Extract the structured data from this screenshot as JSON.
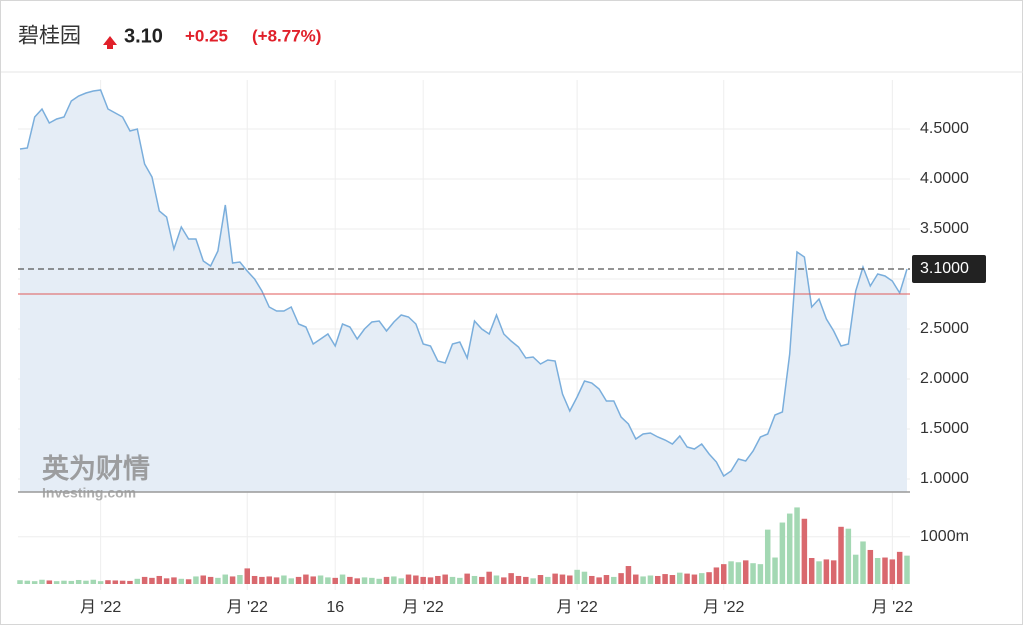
{
  "header": {
    "name": "碧桂园",
    "price": "3.10",
    "change": "+0.25",
    "change_pct": "(+8.77%)"
  },
  "watermark": {
    "brand": "英为财情",
    "site": "Investing.com"
  },
  "chart_data": [
    {
      "type": "line",
      "line_color": "#7aaedc",
      "area_color": "#e5edf6",
      "grid": true,
      "xlim": [
        0,
        121
      ],
      "xticks": [
        {
          "value": 11,
          "label": "月 '22"
        },
        {
          "value": 31,
          "label": "月 '22"
        },
        {
          "value": 43,
          "label": "16"
        },
        {
          "value": 55,
          "label": "月 '22"
        },
        {
          "value": 76,
          "label": "月 '22"
        },
        {
          "value": 96,
          "label": "月 '22"
        },
        {
          "value": 119,
          "label": "月 '22"
        }
      ],
      "ylim": [
        0.87,
        4.99
      ],
      "yticks": [
        {
          "value": 1,
          "label": "1.0000"
        },
        {
          "value": 1.5,
          "label": "1.5000"
        },
        {
          "value": 2,
          "label": "2.0000"
        },
        {
          "value": 2.5,
          "label": "2.5000"
        },
        {
          "value": 3,
          "label": "3.0000"
        },
        {
          "value": 3.5,
          "label": "3.5000"
        },
        {
          "value": 4,
          "label": "4.0000"
        },
        {
          "value": 4.5,
          "label": "4.5000"
        }
      ],
      "last_price": {
        "value": 3.1,
        "label": "3.1000"
      },
      "prev_close": 2.85,
      "series": [
        {
          "values": [
            4.3,
            4.31,
            4.62,
            4.7,
            4.56,
            4.6,
            4.62,
            4.78,
            4.83,
            4.86,
            4.88,
            4.89,
            4.7,
            4.66,
            4.62,
            4.48,
            4.5,
            4.15,
            4.02,
            3.68,
            3.62,
            3.3,
            3.52,
            3.4,
            3.4,
            3.18,
            3.13,
            3.28,
            3.74,
            3.16,
            3.17,
            3.08,
            3.0,
            2.88,
            2.72,
            2.68,
            2.68,
            2.72,
            2.55,
            2.52,
            2.35,
            2.4,
            2.45,
            2.33,
            2.55,
            2.52,
            2.4,
            2.5,
            2.57,
            2.58,
            2.48,
            2.57,
            2.64,
            2.62,
            2.55,
            2.35,
            2.33,
            2.18,
            2.16,
            2.35,
            2.37,
            2.21,
            2.58,
            2.5,
            2.45,
            2.64,
            2.45,
            2.38,
            2.32,
            2.21,
            2.22,
            2.15,
            2.19,
            2.18,
            1.85,
            1.68,
            1.82,
            1.98,
            1.96,
            1.9,
            1.78,
            1.78,
            1.62,
            1.55,
            1.4,
            1.45,
            1.46,
            1.42,
            1.39,
            1.35,
            1.43,
            1.32,
            1.3,
            1.35,
            1.25,
            1.17,
            1.03,
            1.08,
            1.2,
            1.18,
            1.28,
            1.42,
            1.45,
            1.64,
            1.67,
            2.25,
            3.27,
            3.22,
            2.72,
            2.8,
            2.6,
            2.48,
            2.33,
            2.35,
            2.88,
            3.12,
            2.93,
            3.05,
            3.03,
            2.98,
            2.86,
            3.1
          ]
        }
      ]
    },
    {
      "type": "bar",
      "up_color": "#a3d8b3",
      "down_color": "#d9686e",
      "ylim": [
        0,
        1650
      ],
      "yticks": [
        {
          "value": 1000,
          "label": "1000m"
        }
      ],
      "values": [
        80,
        70,
        60,
        90,
        75,
        60,
        70,
        65,
        85,
        70,
        90,
        60,
        80,
        75,
        70,
        65,
        110,
        150,
        130,
        170,
        120,
        140,
        110,
        100,
        160,
        180,
        150,
        130,
        200,
        160,
        190,
        330,
        170,
        150,
        160,
        140,
        180,
        120,
        150,
        200,
        160,
        180,
        140,
        130,
        200,
        150,
        120,
        140,
        130,
        110,
        150,
        160,
        120,
        200,
        180,
        150,
        140,
        170,
        200,
        150,
        130,
        220,
        170,
        150,
        260,
        180,
        140,
        230,
        170,
        150,
        120,
        190,
        150,
        220,
        200,
        180,
        300,
        260,
        170,
        140,
        190,
        150,
        230,
        380,
        200,
        160,
        180,
        170,
        210,
        190,
        240,
        220,
        200,
        230,
        250,
        350,
        420,
        480,
        460,
        500,
        440,
        420,
        1150,
        560,
        1300,
        1490,
        1620,
        1380,
        550,
        480,
        520,
        500,
        1210,
        1170,
        620,
        900,
        720,
        550,
        560,
        520,
        680,
        600
      ]
    }
  ]
}
